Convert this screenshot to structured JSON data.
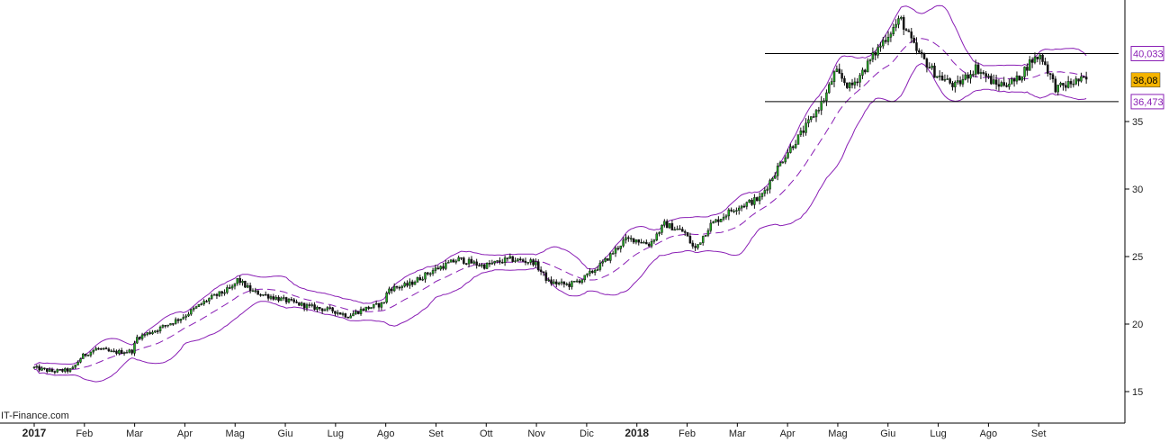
{
  "watermark": "IT-Finance.com",
  "chart_data": {
    "type": "candlestick",
    "y_axis": {
      "ticks": [
        15,
        20,
        25,
        30,
        35
      ],
      "range": [
        12.8,
        44.0
      ]
    },
    "x_axis": {
      "labels": [
        {
          "text": "2017",
          "bold": true,
          "t": 0.0
        },
        {
          "text": "Feb",
          "bold": false,
          "t": 1.0
        },
        {
          "text": "Mar",
          "bold": false,
          "t": 2.0
        },
        {
          "text": "Apr",
          "bold": false,
          "t": 3.0
        },
        {
          "text": "Mag",
          "bold": false,
          "t": 4.0
        },
        {
          "text": "Giu",
          "bold": false,
          "t": 5.0
        },
        {
          "text": "Lug",
          "bold": false,
          "t": 6.0
        },
        {
          "text": "Ago",
          "bold": false,
          "t": 7.0
        },
        {
          "text": "Set",
          "bold": false,
          "t": 8.0
        },
        {
          "text": "Ott",
          "bold": false,
          "t": 9.0
        },
        {
          "text": "Nov",
          "bold": false,
          "t": 10.0
        },
        {
          "text": "Dic",
          "bold": false,
          "t": 11.0
        },
        {
          "text": "2018",
          "bold": true,
          "t": 12.0
        },
        {
          "text": "Feb",
          "bold": false,
          "t": 13.0
        },
        {
          "text": "Mar",
          "bold": false,
          "t": 14.0
        },
        {
          "text": "Apr",
          "bold": false,
          "t": 15.0
        },
        {
          "text": "Mag",
          "bold": false,
          "t": 16.0
        },
        {
          "text": "Giu",
          "bold": false,
          "t": 17.0
        },
        {
          "text": "Lug",
          "bold": false,
          "t": 18.0
        },
        {
          "text": "Ago",
          "bold": false,
          "t": 19.0
        },
        {
          "text": "Set",
          "bold": false,
          "t": 20.0
        }
      ],
      "t_range": [
        0.0,
        21.0
      ]
    },
    "price_path": [
      [
        0.0,
        16.8
      ],
      [
        0.4,
        16.5
      ],
      [
        0.8,
        16.6
      ],
      [
        1.0,
        17.6
      ],
      [
        1.3,
        18.2
      ],
      [
        1.6,
        17.9
      ],
      [
        2.0,
        18.0
      ],
      [
        2.1,
        19.0
      ],
      [
        2.5,
        19.6
      ],
      [
        3.0,
        20.5
      ],
      [
        3.5,
        21.8
      ],
      [
        4.0,
        22.7
      ],
      [
        4.1,
        23.3
      ],
      [
        4.4,
        22.4
      ],
      [
        5.0,
        21.8
      ],
      [
        5.5,
        21.3
      ],
      [
        6.0,
        21.0
      ],
      [
        6.3,
        20.6
      ],
      [
        6.6,
        21.1
      ],
      [
        7.0,
        21.5
      ],
      [
        7.1,
        22.6
      ],
      [
        7.5,
        22.9
      ],
      [
        8.0,
        24.0
      ],
      [
        8.5,
        24.8
      ],
      [
        9.0,
        24.3
      ],
      [
        9.5,
        24.8
      ],
      [
        10.0,
        24.6
      ],
      [
        10.3,
        23.1
      ],
      [
        10.7,
        22.9
      ],
      [
        11.0,
        23.4
      ],
      [
        11.4,
        24.6
      ],
      [
        11.8,
        26.2
      ],
      [
        12.0,
        26.3
      ],
      [
        12.3,
        25.9
      ],
      [
        12.6,
        27.4
      ],
      [
        13.0,
        26.8
      ],
      [
        13.2,
        25.5
      ],
      [
        13.5,
        27.3
      ],
      [
        14.0,
        28.6
      ],
      [
        14.5,
        29.3
      ],
      [
        15.0,
        32.5
      ],
      [
        15.4,
        34.5
      ],
      [
        15.8,
        36.8
      ],
      [
        16.0,
        38.7
      ],
      [
        16.3,
        37.5
      ],
      [
        16.6,
        39.0
      ],
      [
        17.0,
        41.2
      ],
      [
        17.3,
        42.6
      ],
      [
        17.6,
        40.3
      ],
      [
        18.0,
        38.5
      ],
      [
        18.4,
        37.6
      ],
      [
        18.8,
        39.0
      ],
      [
        19.2,
        37.7
      ],
      [
        19.6,
        38.0
      ],
      [
        19.9,
        39.5
      ],
      [
        20.1,
        39.9
      ],
      [
        20.4,
        37.4
      ],
      [
        20.8,
        38.0
      ],
      [
        21.0,
        38.1
      ]
    ],
    "bollinger_width": 1.6,
    "horizontal_lines": [
      {
        "value": 40.033,
        "label": "40,033",
        "t_start": 14.55
      },
      {
        "value": 36.473,
        "label": "36,473",
        "t_start": 14.55
      }
    ],
    "last_price": {
      "value": 38.08,
      "label": "38,08"
    },
    "colors": {
      "candle_up": "#22aa22",
      "candle_down": "#111111",
      "bollinger": "#8a1fb5",
      "level_line": "#000000",
      "last_price_bg": "#f5b400",
      "label_text": "#8a1fb5"
    }
  }
}
